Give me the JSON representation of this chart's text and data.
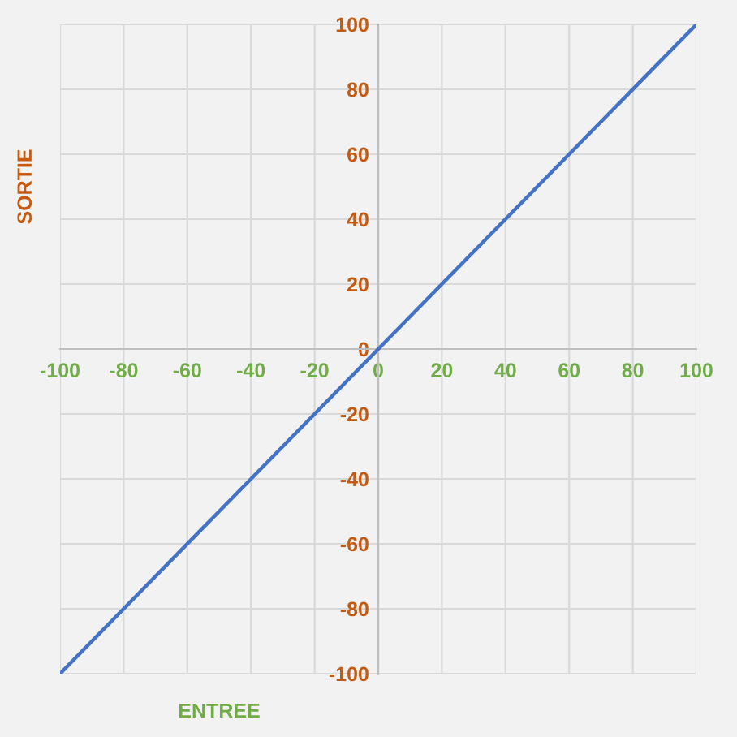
{
  "chart_data": {
    "type": "line",
    "xlabel": "ENTREE",
    "ylabel": "SORTIE",
    "x": [
      -100,
      100
    ],
    "series": [
      {
        "color": "#4472c4",
        "values": [
          -100,
          100
        ]
      }
    ],
    "xlim": [
      -100,
      100
    ],
    "ylim": [
      -100,
      100
    ],
    "xticks": [
      -100,
      -80,
      -60,
      -40,
      -20,
      0,
      20,
      40,
      60,
      80,
      100
    ],
    "yticks": [
      -100,
      -80,
      -60,
      -40,
      -20,
      0,
      20,
      40,
      60,
      80,
      100
    ],
    "grid": true,
    "legend": false,
    "marker": "none",
    "line_style": "solid"
  }
}
